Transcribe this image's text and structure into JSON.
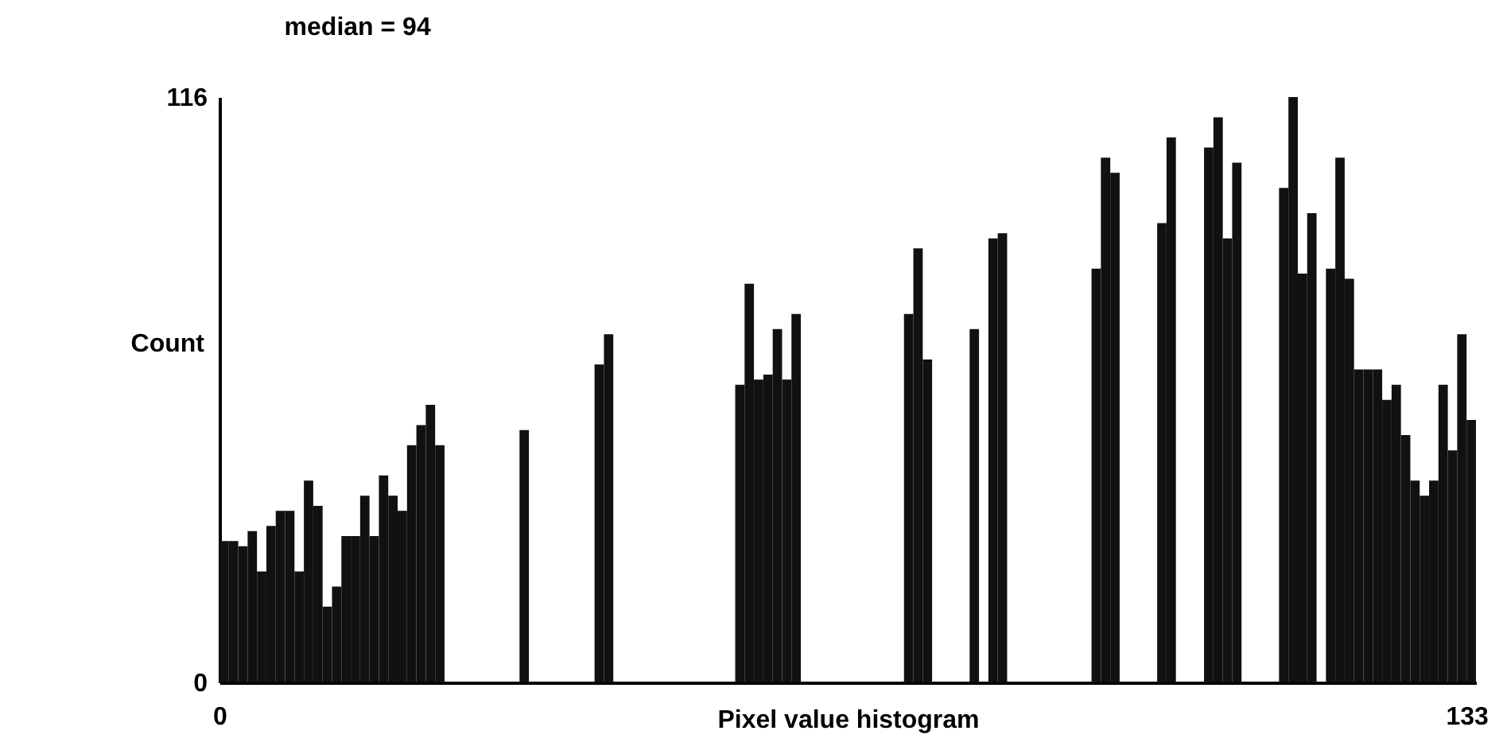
{
  "chart_data": {
    "type": "histogram",
    "title": "median = 94",
    "xlabel": "Pixel value histogram",
    "ylabel": "Count",
    "bins": [
      0,
      1,
      2,
      3,
      4,
      5,
      6,
      7,
      8,
      9,
      10,
      11,
      12,
      13,
      14,
      15,
      16,
      17,
      18,
      19,
      20,
      21,
      22,
      23,
      24,
      25,
      26,
      27,
      28,
      29,
      30,
      31,
      32,
      33,
      34,
      35,
      36,
      37,
      38,
      39,
      40,
      41,
      42,
      43,
      44,
      45,
      46,
      47,
      48,
      49,
      50,
      51,
      52,
      53,
      54,
      55,
      56,
      57,
      58,
      59,
      60,
      61,
      62,
      63,
      64,
      65,
      66,
      67,
      68,
      69,
      70,
      71,
      72,
      73,
      74,
      75,
      76,
      77,
      78,
      79,
      80,
      81,
      82,
      83,
      84,
      85,
      86,
      87,
      88,
      89,
      90,
      91,
      92,
      93,
      94,
      95,
      96,
      97,
      98,
      99,
      100,
      101,
      102,
      103,
      104,
      105,
      106,
      107,
      108,
      109,
      110,
      111,
      112,
      113,
      114,
      115,
      116,
      117,
      118,
      119,
      120,
      121,
      122,
      123,
      124,
      125,
      126,
      127,
      128,
      129,
      130,
      131,
      132,
      133,
      134
    ],
    "values": [
      28,
      28,
      27,
      30,
      22,
      31,
      34,
      34,
      22,
      40,
      35,
      15,
      19,
      29,
      29,
      37,
      29,
      41,
      37,
      34,
      47,
      51,
      55,
      47,
      0,
      0,
      0,
      0,
      0,
      0,
      0,
      0,
      50,
      0,
      0,
      0,
      0,
      0,
      0,
      0,
      63,
      69,
      0,
      0,
      0,
      0,
      0,
      0,
      0,
      0,
      0,
      0,
      0,
      0,
      0,
      59,
      79,
      60,
      61,
      70,
      60,
      73,
      0,
      0,
      0,
      0,
      0,
      0,
      0,
      0,
      0,
      0,
      0,
      73,
      86,
      64,
      0,
      0,
      0,
      0,
      70,
      0,
      88,
      89,
      0,
      0,
      0,
      0,
      0,
      0,
      0,
      0,
      0,
      82,
      104,
      101,
      0,
      0,
      0,
      0,
      91,
      108,
      0,
      0,
      0,
      106,
      112,
      88,
      103,
      0,
      0,
      0,
      0,
      98,
      116,
      81,
      93,
      0,
      82,
      104,
      80,
      62,
      62,
      62,
      56,
      59,
      49,
      40,
      37,
      40,
      59,
      46,
      69,
      52
    ],
    "color": "#111111",
    "xlim": [
      0,
      134
    ],
    "ylim": [
      0,
      116
    ],
    "xticks": [
      0,
      133
    ],
    "yticks": [
      0,
      116
    ]
  }
}
